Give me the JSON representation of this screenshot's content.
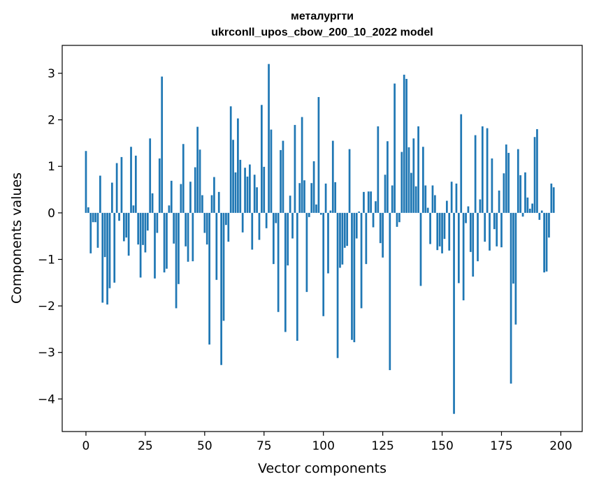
{
  "chart_data": {
    "type": "bar",
    "title_line1": "металургти",
    "title_line2": "ukrconll_upos_cbow_200_10_2022 model",
    "xlabel": "Vector components",
    "ylabel": "Components values",
    "xlim": [
      -10,
      209
    ],
    "ylim": [
      -4.7,
      3.6
    ],
    "xticks": [
      0,
      25,
      50,
      75,
      100,
      125,
      150,
      175,
      200
    ],
    "xtick_labels": [
      "0",
      "25",
      "50",
      "75",
      "100",
      "125",
      "150",
      "175",
      "200"
    ],
    "yticks": [
      -4,
      -3,
      -2,
      -1,
      0,
      1,
      2,
      3
    ],
    "ytick_labels": [
      "−4",
      "−3",
      "−2",
      "−1",
      "0",
      "1",
      "2",
      "3"
    ],
    "bar_color": "#1f77b4",
    "values": [
      1.33,
      0.12,
      -0.87,
      -0.2,
      -0.2,
      -0.75,
      0.8,
      -1.93,
      -0.95,
      -1.97,
      -1.62,
      0.65,
      -1.5,
      1.07,
      -0.17,
      1.2,
      -0.61,
      -0.53,
      -0.92,
      1.42,
      0.16,
      1.23,
      -0.68,
      -1.39,
      -0.69,
      -0.85,
      -0.38,
      1.6,
      0.42,
      -1.41,
      -0.43,
      1.17,
      2.93,
      -1.28,
      -1.2,
      0.16,
      0.69,
      -0.66,
      -2.05,
      -1.53,
      0.62,
      1.48,
      -0.72,
      -1.05,
      0.67,
      -1.04,
      0.98,
      1.85,
      1.36,
      0.38,
      -0.43,
      -0.68,
      -2.83,
      0.38,
      0.77,
      -1.44,
      0.45,
      -3.27,
      -2.32,
      -0.26,
      -0.62,
      2.29,
      1.57,
      0.87,
      2.03,
      1.14,
      -0.42,
      0.97,
      0.78,
      1.04,
      -0.79,
      0.82,
      0.55,
      -0.58,
      2.32,
      0.99,
      -0.33,
      3.2,
      1.79,
      -1.1,
      -0.22,
      -2.13,
      1.35,
      1.55,
      -2.56,
      -1.13,
      0.37,
      -0.55,
      1.89,
      -2.75,
      0.64,
      2.06,
      0.7,
      -1.7,
      -0.09,
      0.64,
      1.11,
      0.18,
      2.49,
      -0.04,
      -2.22,
      0.63,
      -1.3,
      0.05,
      1.55,
      0.66,
      -3.12,
      -1.18,
      -1.11,
      -0.75,
      -0.71,
      1.37,
      -2.73,
      -2.78,
      -0.55,
      0.03,
      -2.05,
      0.45,
      -1.1,
      0.46,
      0.46,
      -0.31,
      0.25,
      1.86,
      -0.65,
      -0.96,
      0.82,
      1.54,
      -3.38,
      0.59,
      2.78,
      -0.3,
      -0.2,
      1.31,
      2.97,
      2.88,
      1.41,
      0.86,
      1.6,
      0.57,
      1.86,
      -1.57,
      1.42,
      0.59,
      0.11,
      -0.67,
      0.59,
      0.38,
      -0.8,
      -0.72,
      -0.87,
      -0.56,
      0.26,
      -0.81,
      0.67,
      -4.32,
      0.63,
      -1.51,
      2.12,
      -1.88,
      -0.22,
      0.14,
      -0.84,
      -1.37,
      1.67,
      -1.04,
      0.29,
      1.86,
      -0.62,
      1.82,
      -0.81,
      1.17,
      -0.35,
      -0.72,
      0.48,
      -0.74,
      0.85,
      1.47,
      1.29,
      -3.67,
      -1.52,
      -2.4,
      1.37,
      0.81,
      -0.08,
      0.87,
      0.33,
      0.09,
      0.2,
      1.63,
      1.8,
      -0.15,
      0.05,
      -1.28,
      -1.26,
      -0.53,
      0.63,
      0.55
    ]
  }
}
